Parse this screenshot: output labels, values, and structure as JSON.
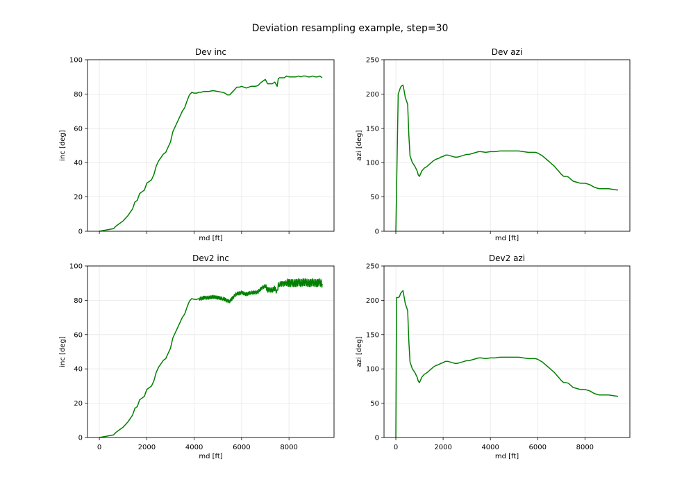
{
  "figure": {
    "suptitle": "Deviation resampling example, step=30"
  },
  "colors": {
    "line": "#008000",
    "grid": "#e6e6e6",
    "axes": "#000000"
  },
  "chart_data": [
    {
      "id": "dev-inc",
      "type": "line",
      "title": "Dev inc",
      "xlabel": "md [ft]",
      "ylabel": "inc [deg]",
      "xlim": [
        -500,
        9900
      ],
      "ylim": [
        0,
        100
      ],
      "xticks": [
        0,
        2000,
        4000,
        6000,
        8000
      ],
      "yticks": [
        0,
        20,
        40,
        60,
        80,
        100
      ],
      "show_xticklabels": false,
      "grid": true,
      "series": [
        {
          "x": [
            0,
            200,
            400,
            600,
            700,
            800,
            1000,
            1200,
            1300,
            1400,
            1500,
            1600,
            1700,
            1800,
            1900,
            2000,
            2100,
            2200,
            2300,
            2400,
            2500,
            2600,
            2700,
            2800,
            2900,
            3000,
            3100,
            3200,
            3300,
            3400,
            3500,
            3600,
            3700,
            3800,
            3900,
            4000,
            4100,
            4200,
            4300,
            4400,
            4500,
            4600,
            4800,
            5000,
            5200,
            5300,
            5400,
            5500,
            5600,
            5700,
            5800,
            5900,
            6000,
            6100,
            6200,
            6400,
            6500,
            6600,
            6700,
            6800,
            6900,
            7000,
            7100,
            7200,
            7300,
            7400,
            7500,
            7550,
            7600,
            7700,
            7750,
            7800,
            7900,
            8000,
            8100,
            8200,
            8300,
            8400,
            8500,
            8600,
            8700,
            8800,
            8900,
            9000,
            9100,
            9200,
            9300,
            9400
          ],
          "y": [
            0,
            0.5,
            1,
            1.5,
            3,
            4,
            6,
            9,
            11,
            13,
            17,
            18,
            22,
            23,
            24,
            28,
            29,
            30,
            33,
            38,
            41,
            43,
            45,
            46,
            49,
            52,
            58,
            61,
            64,
            67,
            70,
            72,
            76,
            79.5,
            81,
            80.5,
            80.5,
            81,
            81,
            81.5,
            81.5,
            81.5,
            82,
            81.5,
            81,
            80.5,
            79.5,
            79.5,
            81,
            82.5,
            84,
            84,
            84.5,
            84,
            83.5,
            84.5,
            84.5,
            84.5,
            85,
            86.5,
            87.5,
            88.5,
            86,
            86,
            86,
            87,
            84.5,
            89,
            89.5,
            89.5,
            89.5,
            89.5,
            90.5,
            90,
            90,
            90,
            90,
            90.5,
            90,
            90.5,
            90.5,
            90,
            90,
            90.5,
            90,
            90,
            90.5,
            89.5
          ]
        }
      ]
    },
    {
      "id": "dev-azi",
      "type": "line",
      "title": "Dev azi",
      "xlabel": "md [ft]",
      "ylabel": "azi [deg]",
      "xlim": [
        -500,
        9900
      ],
      "ylim": [
        0,
        250
      ],
      "xticks": [
        0,
        2000,
        4000,
        6000,
        8000
      ],
      "yticks": [
        0,
        50,
        100,
        150,
        200,
        250
      ],
      "show_xticklabels": false,
      "grid": true,
      "series": [
        {
          "x": [
            0,
            100,
            150,
            200,
            250,
            300,
            350,
            400,
            500,
            550,
            600,
            700,
            800,
            900,
            950,
            1000,
            1050,
            1100,
            1200,
            1300,
            1400,
            1500,
            1600,
            1700,
            1800,
            1900,
            2000,
            2100,
            2200,
            2300,
            2400,
            2500,
            2600,
            2700,
            2800,
            2900,
            3000,
            3100,
            3200,
            3300,
            3400,
            3500,
            3600,
            3800,
            4000,
            4200,
            4400,
            4600,
            4800,
            5000,
            5200,
            5400,
            5600,
            5800,
            5900,
            6000,
            6100,
            6200,
            6300,
            6400,
            6500,
            6600,
            6700,
            6800,
            6900,
            7000,
            7100,
            7200,
            7300,
            7400,
            7500,
            7600,
            7700,
            7800,
            7900,
            8000,
            8100,
            8200,
            8300,
            8400,
            8500,
            8600,
            8800,
            9000,
            9200,
            9400
          ],
          "y": [
            0,
            200,
            205,
            210,
            212,
            213,
            205,
            195,
            185,
            140,
            110,
            100,
            95,
            88,
            82,
            80,
            84,
            88,
            92,
            94,
            97,
            100,
            103,
            105,
            106,
            108,
            109,
            111,
            111,
            110,
            109,
            108,
            108,
            109,
            110,
            111,
            112,
            112,
            113,
            114,
            115,
            116,
            116,
            115,
            116,
            116,
            117,
            117,
            117,
            117,
            117,
            116,
            115,
            115,
            115,
            114,
            112,
            110,
            107,
            104,
            101,
            98,
            95,
            91,
            87,
            83,
            80,
            80,
            79,
            76,
            73,
            72,
            71,
            70,
            70,
            70,
            69,
            68,
            66,
            64,
            63,
            62,
            62,
            62,
            61,
            60
          ]
        }
      ]
    },
    {
      "id": "dev2-inc",
      "type": "line",
      "title": "Dev2 inc",
      "xlabel": "md [ft]",
      "ylabel": "inc [deg]",
      "xlim": [
        -500,
        9900
      ],
      "ylim": [
        0,
        100
      ],
      "xticks": [
        0,
        2000,
        4000,
        6000,
        8000
      ],
      "yticks": [
        0,
        20,
        40,
        60,
        80,
        100
      ],
      "show_xticklabels": true,
      "grid": true,
      "series": [
        {
          "step": 30,
          "x": [
            0,
            200,
            400,
            600,
            700,
            800,
            1000,
            1200,
            1300,
            1400,
            1500,
            1600,
            1700,
            1800,
            1900,
            2000,
            2100,
            2200,
            2300,
            2400,
            2500,
            2600,
            2700,
            2800,
            2900,
            3000,
            3100,
            3200,
            3300,
            3400,
            3500,
            3600,
            3700,
            3800,
            3900,
            4000,
            4100,
            4200,
            4300,
            4400,
            4500,
            4600,
            4800,
            5000,
            5200,
            5300,
            5400,
            5500,
            5600,
            5700,
            5800,
            5900,
            6000,
            6100,
            6200,
            6400,
            6500,
            6600,
            6700,
            6800,
            6900,
            7000,
            7100,
            7200,
            7300,
            7400,
            7500,
            7550,
            7600,
            7700,
            7750,
            7800,
            7900,
            8000,
            8100,
            8200,
            8300,
            8400,
            8500,
            8600,
            8700,
            8800,
            8900,
            9000,
            9100,
            9200,
            9300,
            9400
          ],
          "y": [
            0,
            0.5,
            1,
            1.5,
            3,
            4,
            6,
            9,
            11,
            13,
            17,
            18,
            22,
            23,
            24,
            28,
            29,
            30,
            33,
            38,
            41,
            43,
            45,
            46,
            49,
            52,
            58,
            61,
            64,
            67,
            70,
            72,
            76,
            79.5,
            81,
            80.5,
            80.5,
            81,
            81,
            81.5,
            81.5,
            81.5,
            82,
            81.5,
            81,
            80.5,
            79.5,
            79.5,
            81,
            82.5,
            84,
            84,
            84.5,
            84,
            83.5,
            84.5,
            84.5,
            84.5,
            85,
            86.5,
            87.5,
            88.5,
            86,
            86,
            86,
            87,
            84.5,
            89,
            89.5,
            89.5,
            89.5,
            89.5,
            90.5,
            90,
            90,
            90,
            90,
            90.5,
            90,
            90.5,
            90.5,
            90,
            90,
            90.5,
            90,
            90,
            90.5,
            89.5
          ]
        }
      ]
    },
    {
      "id": "dev2-azi",
      "type": "line",
      "title": "Dev2 azi",
      "xlabel": "md [ft]",
      "ylabel": "azi [deg]",
      "xlim": [
        -500,
        9900
      ],
      "ylim": [
        0,
        250
      ],
      "xticks": [
        0,
        2000,
        4000,
        6000,
        8000
      ],
      "yticks": [
        0,
        50,
        100,
        150,
        200,
        250
      ],
      "show_xticklabels": true,
      "grid": true,
      "series": [
        {
          "x": [
            0,
            30,
            100,
            150,
            200,
            250,
            300,
            350,
            400,
            500,
            550,
            600,
            700,
            800,
            900,
            950,
            1000,
            1050,
            1100,
            1200,
            1300,
            1400,
            1500,
            1600,
            1700,
            1800,
            1900,
            2000,
            2100,
            2200,
            2300,
            2400,
            2500,
            2600,
            2700,
            2800,
            2900,
            3000,
            3100,
            3200,
            3300,
            3400,
            3500,
            3600,
            3800,
            4000,
            4200,
            4400,
            4600,
            4800,
            5000,
            5200,
            5400,
            5600,
            5800,
            5900,
            6000,
            6100,
            6200,
            6300,
            6400,
            6500,
            6600,
            6700,
            6800,
            6900,
            7000,
            7100,
            7200,
            7300,
            7400,
            7500,
            7600,
            7700,
            7800,
            7900,
            8000,
            8100,
            8200,
            8300,
            8400,
            8500,
            8600,
            8800,
            9000,
            9200,
            9400
          ],
          "y": [
            0,
            204,
            204,
            205,
            210,
            212,
            214,
            205,
            195,
            185,
            140,
            110,
            100,
            95,
            88,
            82,
            80,
            84,
            88,
            92,
            94,
            97,
            100,
            103,
            105,
            106,
            108,
            109,
            111,
            111,
            110,
            109,
            108,
            108,
            109,
            110,
            111,
            112,
            112,
            113,
            114,
            115,
            116,
            116,
            115,
            116,
            116,
            117,
            117,
            117,
            117,
            117,
            116,
            115,
            115,
            115,
            114,
            112,
            110,
            107,
            104,
            101,
            98,
            95,
            91,
            87,
            83,
            80,
            80,
            79,
            76,
            73,
            72,
            71,
            70,
            70,
            70,
            69,
            68,
            66,
            64,
            63,
            62,
            62,
            62,
            61,
            60
          ]
        }
      ]
    }
  ]
}
